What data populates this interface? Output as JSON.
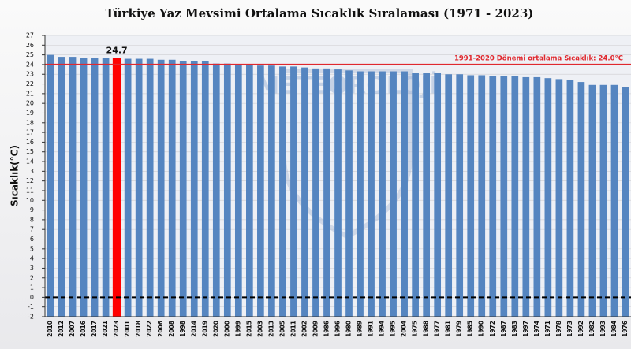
{
  "chart_data": {
    "type": "bar",
    "title": "Türkiye Yaz Mevsimi Ortalama Sıcaklık Sıralaması (1971 - 2023)",
    "y_label": "Sıcaklık(°C)",
    "watermark": "METEOROLOJİ",
    "categories": [
      "2010",
      "2012",
      "2007",
      "2016",
      "2017",
      "2021",
      "2023",
      "2001",
      "2018",
      "2022",
      "2006",
      "2008",
      "1998",
      "2014",
      "2019",
      "2020",
      "2000",
      "1999",
      "2015",
      "2003",
      "2013",
      "2005",
      "2011",
      "2002",
      "2009",
      "1986",
      "1996",
      "1980",
      "1989",
      "1991",
      "1994",
      "1995",
      "2004",
      "1975",
      "1988",
      "1977",
      "1981",
      "1979",
      "1985",
      "1990",
      "1972",
      "1987",
      "1983",
      "1997",
      "1974",
      "1971",
      "1978",
      "1973",
      "1992",
      "1982",
      "1993",
      "1984",
      "1976"
    ],
    "values": [
      25.0,
      24.8,
      24.8,
      24.7,
      24.7,
      24.7,
      24.7,
      24.6,
      24.6,
      24.6,
      24.5,
      24.5,
      24.4,
      24.4,
      24.4,
      24.1,
      24.1,
      24.0,
      24.0,
      23.9,
      23.9,
      23.8,
      23.8,
      23.7,
      23.6,
      23.6,
      23.5,
      23.4,
      23.3,
      23.3,
      23.3,
      23.3,
      23.3,
      23.1,
      23.1,
      23.1,
      23.0,
      23.0,
      22.9,
      22.9,
      22.8,
      22.8,
      22.8,
      22.7,
      22.7,
      22.6,
      22.5,
      22.4,
      22.2,
      21.9,
      21.9,
      21.9,
      21.7
    ],
    "color": "#5585c0",
    "highlight": {
      "index": 6,
      "color": "#ff0000"
    },
    "reference_line": {
      "value": 24.0,
      "label": "1991-2020 Dönemi ortalama Sıcaklık: 24.0°C",
      "color": "#e0282e"
    },
    "zero_line": true,
    "ylim": [
      -2,
      27
    ],
    "yticks": [
      -2,
      -1,
      0,
      1,
      2,
      3,
      4,
      5,
      6,
      7,
      8,
      9,
      10,
      11,
      12,
      13,
      14,
      15,
      16,
      17,
      18,
      19,
      20,
      21,
      22,
      23,
      24,
      25,
      26,
      27
    ],
    "grid": true
  }
}
